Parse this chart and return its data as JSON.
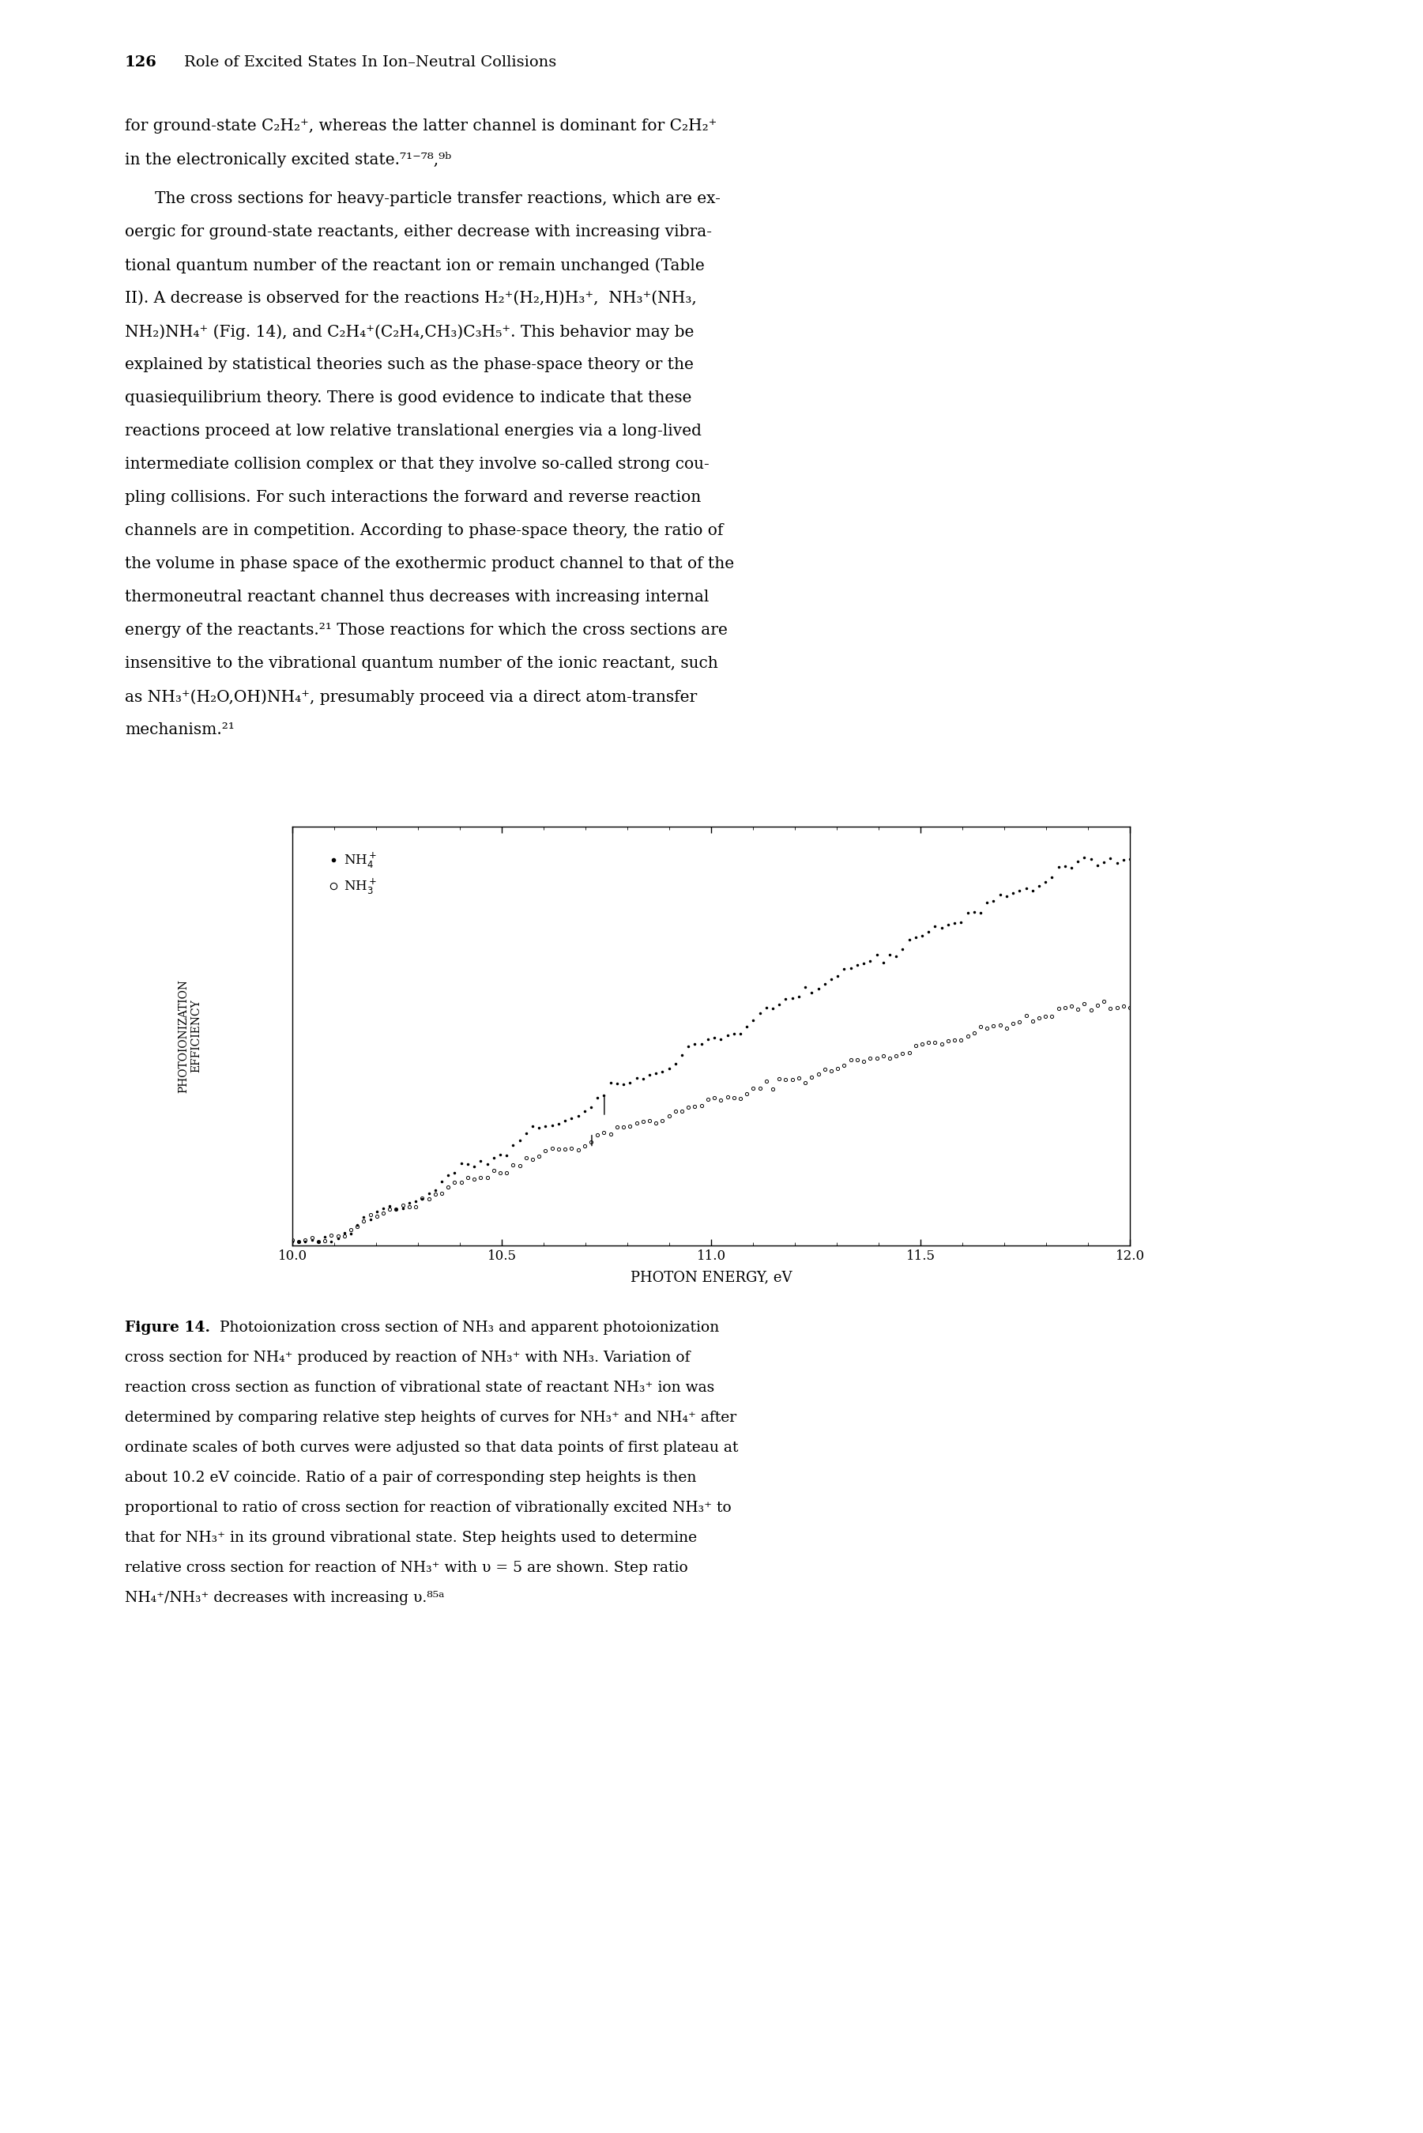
{
  "page_num": "126",
  "header_title": "Role of Excited States In Ion–Neutral Collisions",
  "xlabel": "PHOTON ENERGY, eV",
  "ylabel_line1": "PHOTOIONIZATION",
  "ylabel_line2": "EFFICIENCY",
  "legend_NH4": "NH$_4^+$",
  "legend_NH3": "NH$_3^+$",
  "xlim": [
    10.0,
    12.0
  ],
  "xticks": [
    10.0,
    10.5,
    11.0,
    11.5,
    12.0
  ],
  "xtick_labels": [
    "10.0",
    "10.5",
    "11.0",
    "11.5",
    "12.0"
  ],
  "background_color": "#ffffff",
  "text_color": "#000000",
  "body_fontsize": 14.5,
  "caption_fontsize": 13.5,
  "header_fontsize": 14.0
}
